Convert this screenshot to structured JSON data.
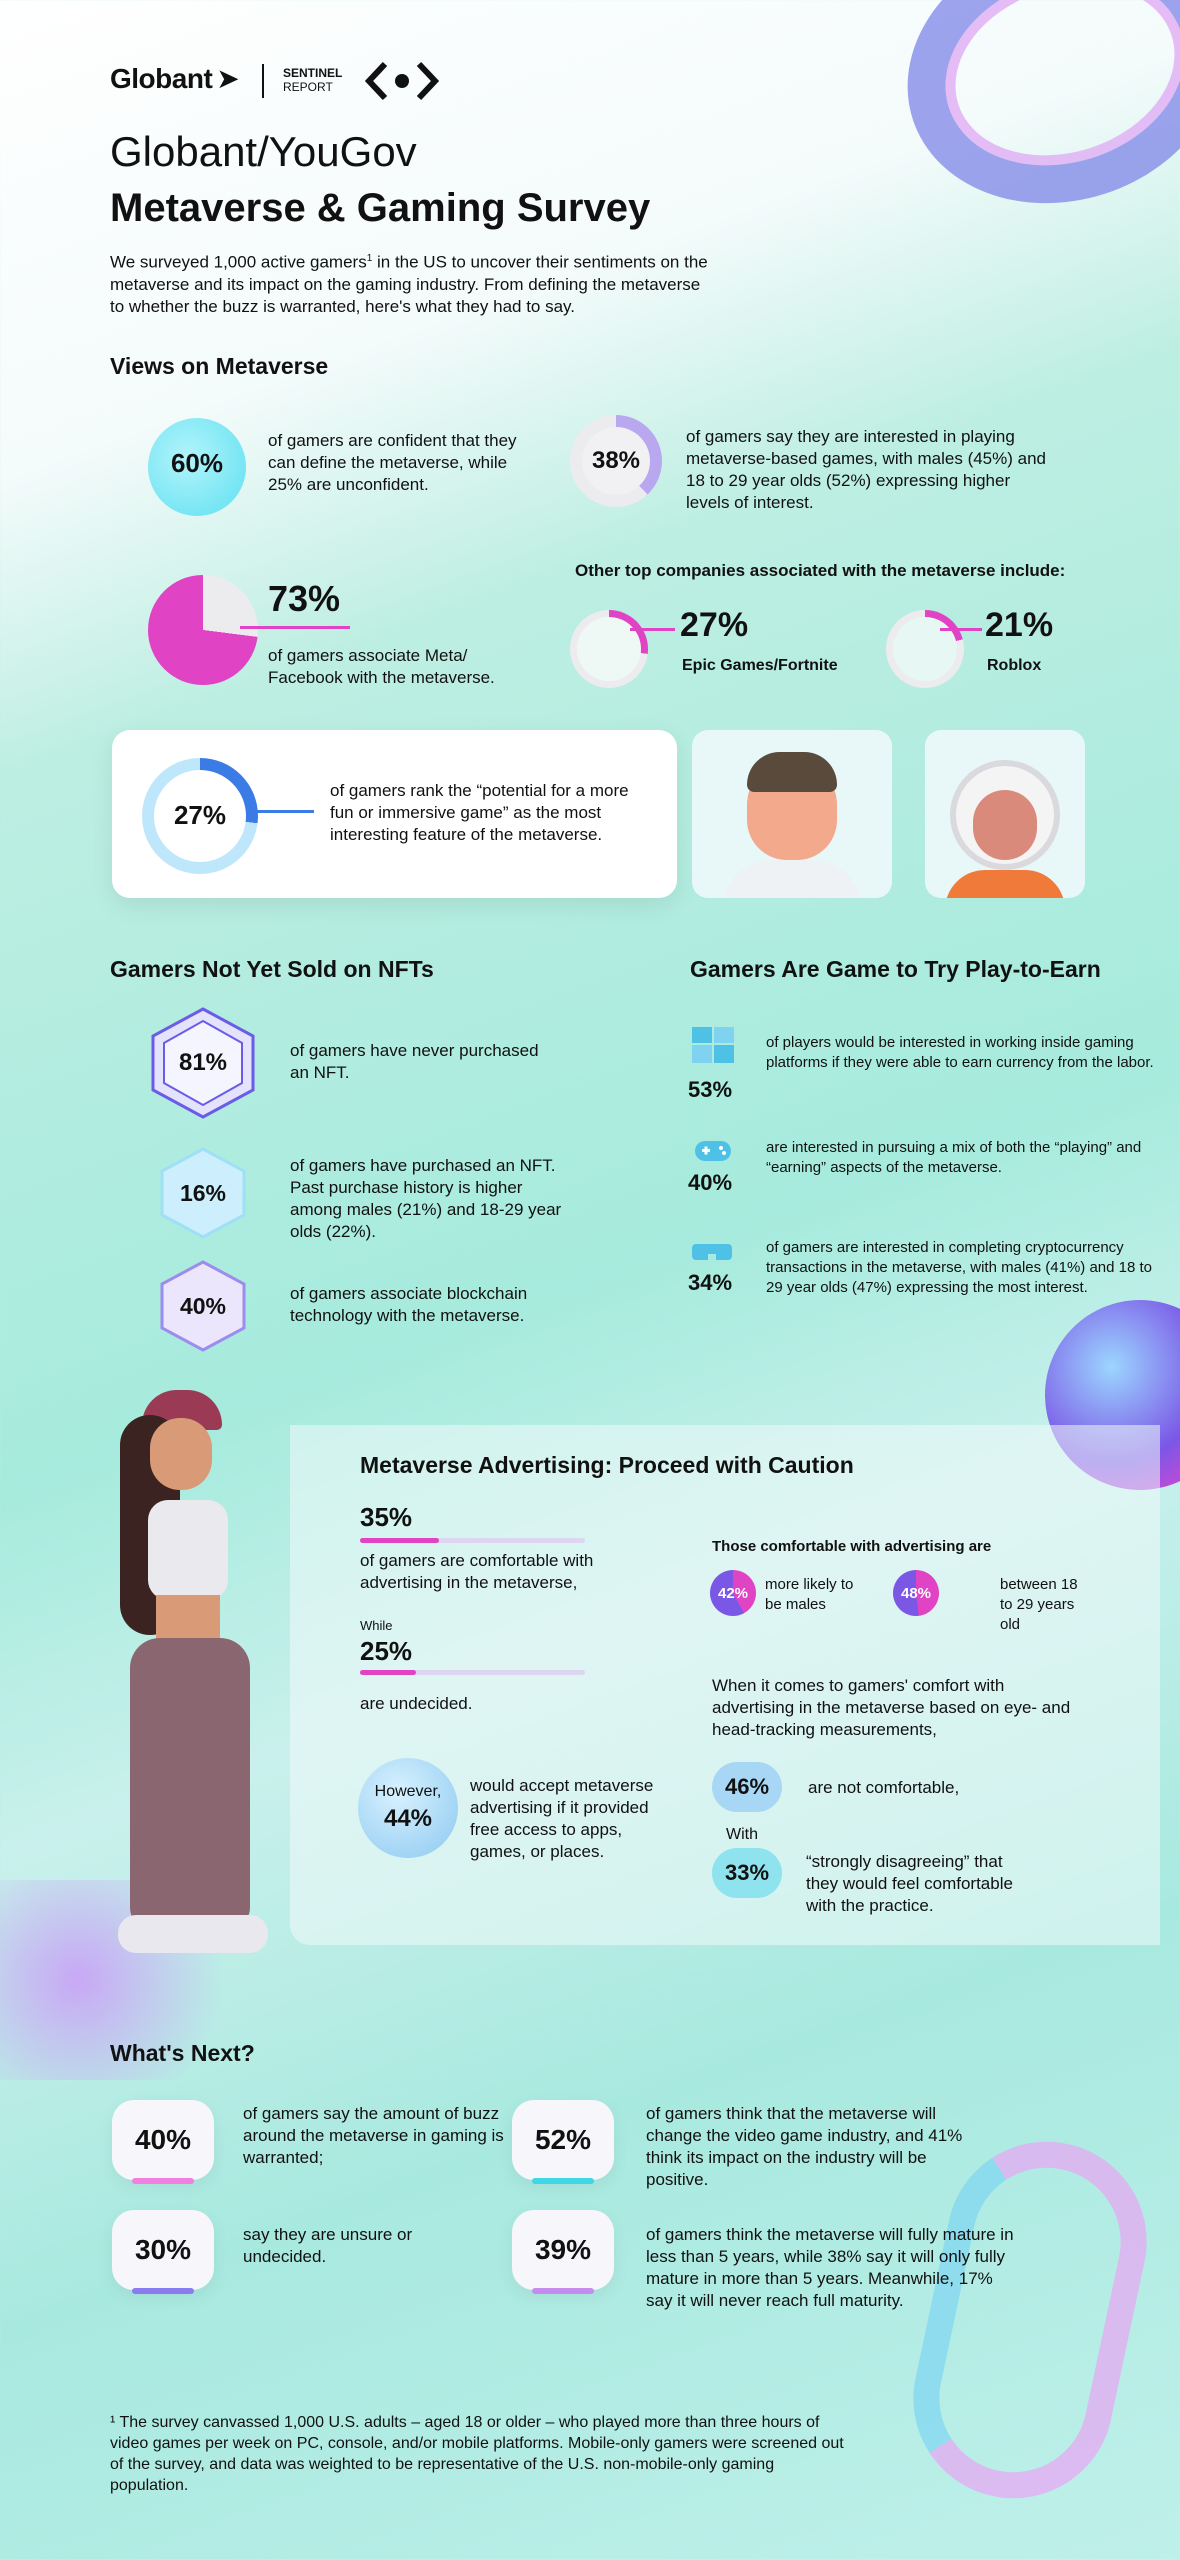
{
  "header": {
    "brand": "Globant",
    "sentinel_line1": "SENTINEL",
    "sentinel_line2": "REPORT"
  },
  "title": {
    "line1": "Globant/YouGov",
    "line2": "Metaverse & Gaming Survey"
  },
  "intro": {
    "part1": "We surveyed 1,000 active gamers",
    "sup": "1",
    "part2": " in the US to uncover their sentiments on the metaverse and its impact on the gaming industry. From defining the metaverse to whether the buzz is warranted, here's what they had to say."
  },
  "views": {
    "heading": "Views on Metaverse",
    "define_pct": "60%",
    "define_text": "of gamers are confident that they can define the metaverse, while 25% are unconfident.",
    "interest_pct": "38%",
    "interest_text": "of gamers say they are interested in playing metaverse-based games, with males (45%) and 18 to 29 year olds (52%) expressing higher levels of interest.",
    "meta_pct": "73%",
    "meta_text": "of gamers associate Meta/ Facebook with the metaverse.",
    "meta_value": 0.73,
    "other_heading": "Other top companies associated with the metaverse include:",
    "epic_pct": "27%",
    "epic_label": "Epic Games/Fortnite",
    "epic_value": 0.27,
    "roblox_pct": "21%",
    "roblox_label": "Roblox",
    "roblox_value": 0.21,
    "fun_pct": "27%",
    "fun_text": "of gamers rank the “potential for a more fun or immersive game” as the most interesting feature of the metaverse.",
    "fun_value": 0.27
  },
  "nfts": {
    "heading": "Gamers Not Yet Sold on NFTs",
    "items": [
      {
        "pct": "81%",
        "text": "of gamers have never purchased an NFT."
      },
      {
        "pct": "16%",
        "text": "of gamers have purchased an NFT. Past purchase history is higher among males (21%) and 18-29 year olds (22%)."
      },
      {
        "pct": "40%",
        "text": "of gamers associate blockchain technology with the metaverse."
      }
    ]
  },
  "p2e": {
    "heading": "Gamers Are Game to Try Play-to-Earn",
    "items": [
      {
        "icon": "puzzle-icon",
        "pct": "53%",
        "text": "of players would be interested in working inside gaming platforms if they were able to earn currency from the labor."
      },
      {
        "icon": "gamepad-icon",
        "pct": "40%",
        "text": "are interested in pursuing a mix of both the “playing” and “earning” aspects of the metaverse."
      },
      {
        "icon": "vr-headset-icon",
        "pct": "34%",
        "text": "of gamers are interested in completing cryptocurrency transactions in the metaverse, with males (41%) and 18 to 29 year olds (47%) expressing the most interest."
      }
    ]
  },
  "ads": {
    "heading": "Metaverse Advertising: Proceed with Caution",
    "comfortable_pct": "35%",
    "comfortable_value": 0.35,
    "comfortable_text": "of gamers are comfortable with advertising in the metaverse,",
    "while_label": "While",
    "undecided_pct": "25%",
    "undecided_value": 0.25,
    "undecided_text": "are undecided.",
    "however_label": "However,",
    "however_pct": "44%",
    "however_text": "would accept metaverse advertising if it provided free access to apps, games, or places.",
    "comfortable_heading": "Those comfortable with advertising are",
    "males_pct": "42%",
    "males_text": "more likely to be males",
    "age_pct": "48%",
    "age_text": "between 18 to 29 years old",
    "tracking_text": "When it comes to gamers' comfort with advertising in the metaverse based on eye- and head-tracking measurements,",
    "not_comfortable_pct": "46%",
    "not_comfortable_text": "are not comfortable,",
    "with_label": "With",
    "strongly_pct": "33%",
    "strongly_text": "“strongly disagreeing” that they would feel comfortable with the practice."
  },
  "next": {
    "heading": "What's Next?",
    "items": [
      {
        "pct": "40%",
        "text": "of gamers say the amount of buzz around the metaverse in gaming is warranted;",
        "glow": "#f07fe0"
      },
      {
        "pct": "52%",
        "text": "of gamers think that the metaverse will change the video game industry, and 41% think its impact on the industry will be positive.",
        "glow": "#3fd6e6"
      },
      {
        "pct": "30%",
        "text": "say they are unsure or undecided.",
        "glow": "#8a7cf0"
      },
      {
        "pct": "39%",
        "text": "of gamers think the metaverse will fully mature in less than 5 years, while 38% say it will only fully mature in more than 5 years. Meanwhile, 17% say it will never reach full maturity.",
        "glow": "#c58cf0"
      }
    ]
  },
  "footnote": "¹ The survey canvassed 1,000 U.S. adults – aged 18 or older – who played more than three hours of video games per week on PC, console, and/or mobile platforms. Mobile-only gamers were screened out of the survey, and data was weighted to be representative of the U.S. non-mobile-only gaming population.",
  "colors": {
    "magenta": "#e043c3",
    "blue": "#3b7be6",
    "cyan": "#5fe0f0",
    "lavender": "#b9a8f0",
    "pill_bg": "#f7f6fb"
  }
}
